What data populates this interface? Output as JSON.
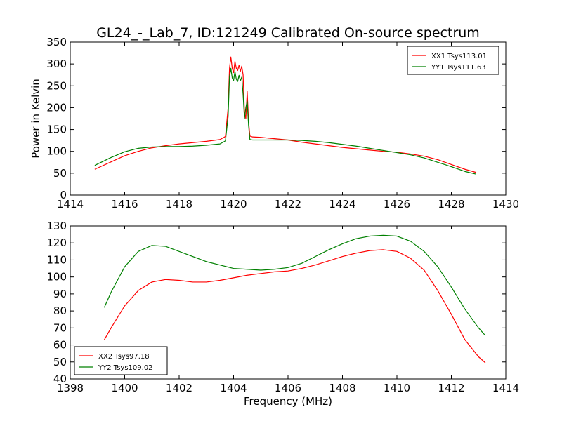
{
  "title": "GL24_-_Lab_7, ID:121249 Calibrated On-source spectrum",
  "chart_data": [
    {
      "type": "line",
      "title": "GL24_-_Lab_7, ID:121249 Calibrated On-source spectrum",
      "xlabel": "",
      "ylabel": "Power in Kelvin",
      "xlim": [
        1414,
        1430
      ],
      "ylim": [
        0,
        350
      ],
      "xticks": [
        1414,
        1416,
        1418,
        1420,
        1422,
        1424,
        1426,
        1428,
        1430
      ],
      "yticks": [
        0,
        50,
        100,
        150,
        200,
        250,
        300,
        350
      ],
      "legend_position": "top-right",
      "grid": false,
      "series": [
        {
          "name": "XX1 Tsys113.01",
          "color": "#ff0000",
          "x": [
            1414.9,
            1415.5,
            1416,
            1416.5,
            1417,
            1417.5,
            1418,
            1418.5,
            1419,
            1419.5,
            1419.7,
            1419.8,
            1419.85,
            1419.9,
            1419.95,
            1420.0,
            1420.05,
            1420.1,
            1420.15,
            1420.2,
            1420.25,
            1420.3,
            1420.35,
            1420.4,
            1420.45,
            1420.5,
            1420.55,
            1420.6,
            1420.7,
            1421,
            1421.5,
            1422,
            1422.5,
            1423,
            1423.5,
            1424,
            1424.5,
            1425,
            1425.5,
            1426,
            1426.5,
            1427,
            1427.5,
            1428,
            1428.5,
            1428.9
          ],
          "y": [
            59,
            76,
            90,
            100,
            108,
            113,
            117,
            120,
            123,
            127,
            134,
            200,
            290,
            316,
            290,
            280,
            306,
            290,
            285,
            297,
            283,
            295,
            275,
            190,
            175,
            237,
            170,
            135,
            133,
            132,
            129,
            126,
            121,
            117,
            113,
            109,
            106,
            103,
            100,
            98,
            94,
            89,
            81,
            70,
            59,
            52
          ]
        },
        {
          "name": "YY1 Tsys111.63",
          "color": "#008000",
          "x": [
            1414.9,
            1415.5,
            1416,
            1416.5,
            1417,
            1417.5,
            1418,
            1418.5,
            1419,
            1419.5,
            1419.7,
            1419.8,
            1419.85,
            1419.9,
            1419.95,
            1420.0,
            1420.05,
            1420.1,
            1420.15,
            1420.2,
            1420.25,
            1420.3,
            1420.35,
            1420.4,
            1420.45,
            1420.5,
            1420.55,
            1420.6,
            1420.7,
            1421,
            1421.5,
            1422,
            1422.5,
            1423,
            1423.5,
            1424,
            1424.5,
            1425,
            1425.5,
            1426,
            1426.5,
            1427,
            1427.5,
            1428,
            1428.5,
            1428.9
          ],
          "y": [
            68,
            86,
            99,
            107,
            110,
            111,
            111,
            112,
            114,
            117,
            124,
            180,
            270,
            290,
            268,
            262,
            283,
            265,
            260,
            274,
            262,
            270,
            230,
            175,
            200,
            215,
            160,
            127,
            126,
            126,
            126,
            126,
            125,
            123,
            120,
            116,
            112,
            107,
            102,
            97,
            92,
            85,
            75,
            65,
            54,
            48
          ]
        }
      ]
    },
    {
      "type": "line",
      "title": "",
      "xlabel": "Frequency (MHz)",
      "ylabel": "",
      "xlim": [
        1398,
        1414
      ],
      "ylim": [
        40,
        130
      ],
      "xticks": [
        1398,
        1400,
        1402,
        1404,
        1406,
        1408,
        1410,
        1412,
        1414
      ],
      "yticks": [
        40,
        50,
        60,
        70,
        80,
        90,
        100,
        110,
        120,
        130
      ],
      "legend_position": "bottom-left",
      "grid": false,
      "series": [
        {
          "name": "XX2 Tsys97.18",
          "color": "#ff0000",
          "x": [
            1399.25,
            1399.5,
            1400,
            1400.5,
            1401,
            1401.5,
            1402,
            1402.5,
            1403,
            1403.5,
            1404,
            1404.5,
            1405,
            1405.5,
            1406,
            1406.5,
            1407,
            1407.5,
            1408,
            1408.5,
            1409,
            1409.5,
            1410,
            1410.5,
            1411,
            1411.5,
            1412,
            1412.5,
            1413,
            1413.25
          ],
          "y": [
            63,
            70,
            83,
            92,
            97,
            98.5,
            98,
            97,
            97,
            98,
            99.5,
            101,
            102,
            103,
            103.5,
            105,
            107,
            109.5,
            112,
            114,
            115.5,
            116,
            115,
            111,
            104,
            92,
            78,
            63,
            53,
            49.5
          ]
        },
        {
          "name": "YY2 Tsys109.02",
          "color": "#008000",
          "x": [
            1399.25,
            1399.5,
            1400,
            1400.5,
            1401,
            1401.5,
            1402,
            1402.5,
            1403,
            1403.5,
            1404,
            1404.5,
            1405,
            1405.5,
            1406,
            1406.5,
            1407,
            1407.5,
            1408,
            1408.5,
            1409,
            1409.5,
            1410,
            1410.5,
            1411,
            1411.5,
            1412,
            1412.5,
            1413,
            1413.25
          ],
          "y": [
            82,
            91,
            106,
            115,
            118.5,
            118,
            115,
            112,
            109,
            107,
            105,
            104.5,
            104,
            104.5,
            105.5,
            108,
            112,
            116,
            119.5,
            122.5,
            124,
            124.5,
            124,
            121,
            115,
            106,
            94,
            81,
            70,
            65.5
          ]
        }
      ]
    }
  ]
}
